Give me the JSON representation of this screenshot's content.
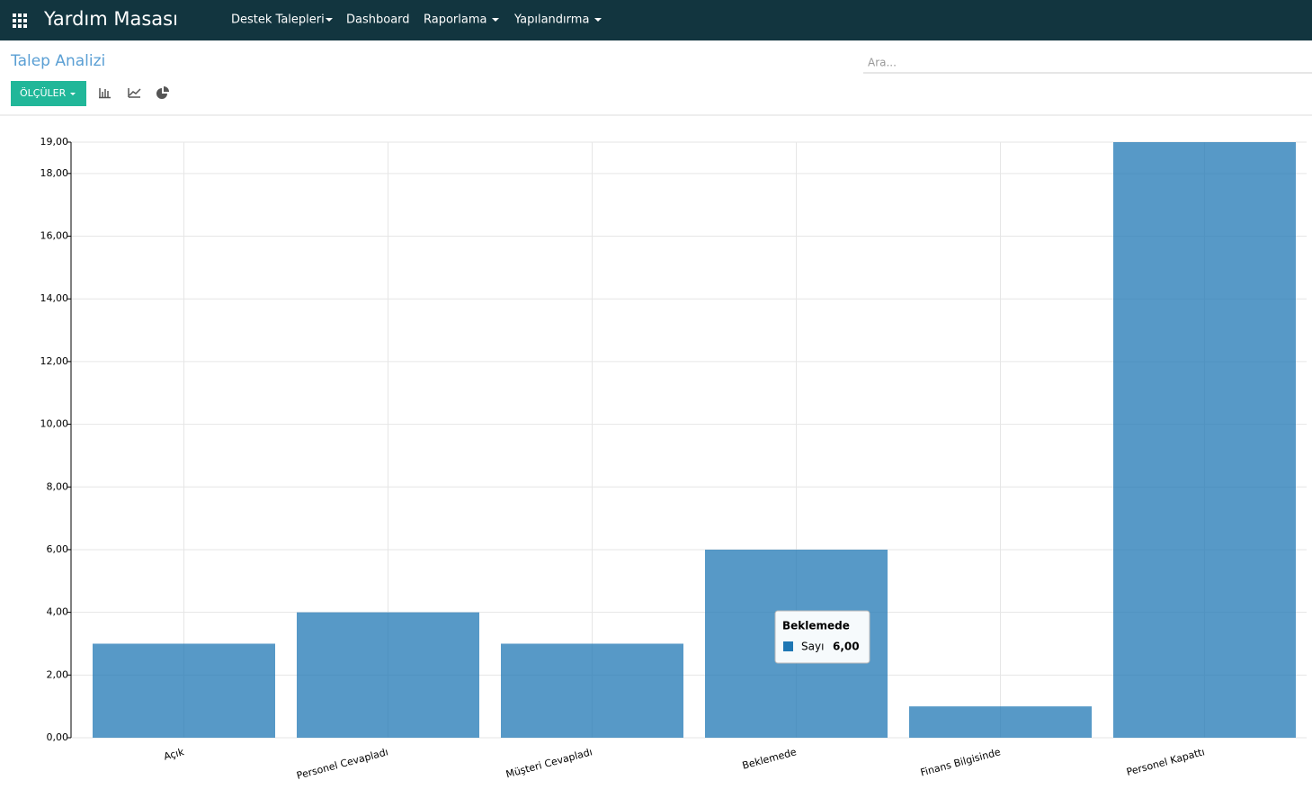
{
  "header": {
    "app_title": "Yardım Masası",
    "menu": [
      "Destek Talepleri",
      "Dashboard",
      "Raporlama",
      "Yapılandırma"
    ]
  },
  "breadcrumb": "Talep Analizi",
  "search": {
    "placeholder": "Ara..."
  },
  "toolbar": {
    "measures_button": "ÖLÇÜLER"
  },
  "chart_data": {
    "type": "bar",
    "categories": [
      "Açık",
      "Personel Cevapladı",
      "Müşteri Cevapladı",
      "Beklemede",
      "Finans Bilgisinde",
      "Personel Kapattı"
    ],
    "values": [
      3,
      4,
      3,
      6,
      1,
      19
    ],
    "color": "#1f77b4",
    "ylim": [
      0,
      19
    ],
    "yticks": [
      {
        "value": 0,
        "label": "0,00"
      },
      {
        "value": 2,
        "label": "2,00"
      },
      {
        "value": 4,
        "label": "4,00"
      },
      {
        "value": 6,
        "label": "6,00"
      },
      {
        "value": 8,
        "label": "8,00"
      },
      {
        "value": 10,
        "label": "10,00"
      },
      {
        "value": 12,
        "label": "12,00"
      },
      {
        "value": 14,
        "label": "14,00"
      },
      {
        "value": 16,
        "label": "16,00"
      },
      {
        "value": 18,
        "label": "18,00"
      },
      {
        "value": 19,
        "label": "19,00"
      }
    ],
    "grid": true,
    "tooltip": {
      "title": "Beklemede",
      "series": "Sayı",
      "value": "6,00"
    }
  }
}
